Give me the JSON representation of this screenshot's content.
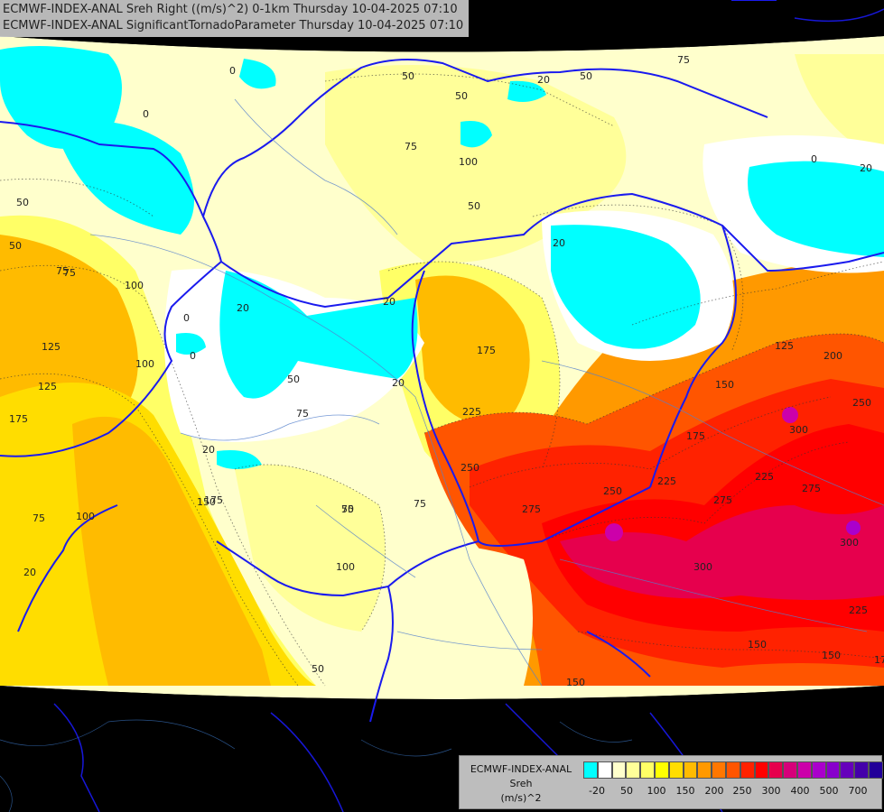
{
  "header": {
    "line1": "ECMWF-INDEX-ANAL Sreh Right ((m/s)^2) 0-1km Thursday 10-04-2025 07:10",
    "line2": "ECMWF-INDEX-ANAL SignificantTornadoParameter Thursday 10-04-2025 07:10"
  },
  "legend": {
    "title1": "ECMWF-INDEX-ANAL",
    "title2": "Sreh",
    "units": "(m/s)^2",
    "colors": [
      "#00ffff",
      "#ffffff",
      "#ffffcc",
      "#ffff99",
      "#ffff66",
      "#ffff00",
      "#ffdd00",
      "#ffbb00",
      "#ff9900",
      "#ff7700",
      "#ff5500",
      "#ff2200",
      "#ff0000",
      "#e6004d",
      "#d6007a",
      "#cc00aa",
      "#aa00cc",
      "#8800cc",
      "#6600bb",
      "#4400aa",
      "#220099"
    ],
    "ticks": [
      "-20",
      "50",
      "100",
      "150",
      "200",
      "250",
      "300",
      "400",
      "500",
      "700"
    ]
  },
  "contour_labels": [
    {
      "t": "0"
    },
    {
      "t": "0"
    },
    {
      "t": "50"
    },
    {
      "t": "50"
    },
    {
      "t": "20"
    },
    {
      "t": "75"
    },
    {
      "t": "75"
    },
    {
      "t": "100"
    },
    {
      "t": "50"
    },
    {
      "t": "0"
    },
    {
      "t": "20"
    },
    {
      "t": "50"
    },
    {
      "t": "50"
    },
    {
      "t": "75"
    },
    {
      "t": "100"
    },
    {
      "t": "125"
    },
    {
      "t": "100"
    },
    {
      "t": "125"
    },
    {
      "t": "175"
    },
    {
      "t": "20"
    },
    {
      "t": "50"
    },
    {
      "t": "20"
    },
    {
      "t": "0"
    },
    {
      "t": "20"
    },
    {
      "t": "50"
    },
    {
      "t": "175"
    },
    {
      "t": "225"
    },
    {
      "t": "250"
    },
    {
      "t": "150"
    },
    {
      "t": "175"
    },
    {
      "t": "125"
    },
    {
      "t": "200"
    },
    {
      "t": "250"
    },
    {
      "t": "300"
    },
    {
      "t": "225"
    },
    {
      "t": "250"
    },
    {
      "t": "275"
    },
    {
      "t": "225"
    },
    {
      "t": "275"
    },
    {
      "t": "275"
    },
    {
      "t": "300"
    },
    {
      "t": "300"
    },
    {
      "t": "225"
    },
    {
      "t": "150"
    },
    {
      "t": "150"
    },
    {
      "t": "175"
    },
    {
      "t": "100"
    },
    {
      "t": "75"
    },
    {
      "t": "75"
    },
    {
      "t": "50"
    },
    {
      "t": "50"
    },
    {
      "t": "150"
    },
    {
      "t": "100"
    },
    {
      "t": "75"
    },
    {
      "t": "20"
    },
    {
      "t": "0"
    },
    {
      "t": "20"
    },
    {
      "t": "75"
    },
    {
      "t": "150"
    },
    {
      "t": "75"
    },
    {
      "t": "20"
    },
    {
      "t": "175"
    }
  ]
}
